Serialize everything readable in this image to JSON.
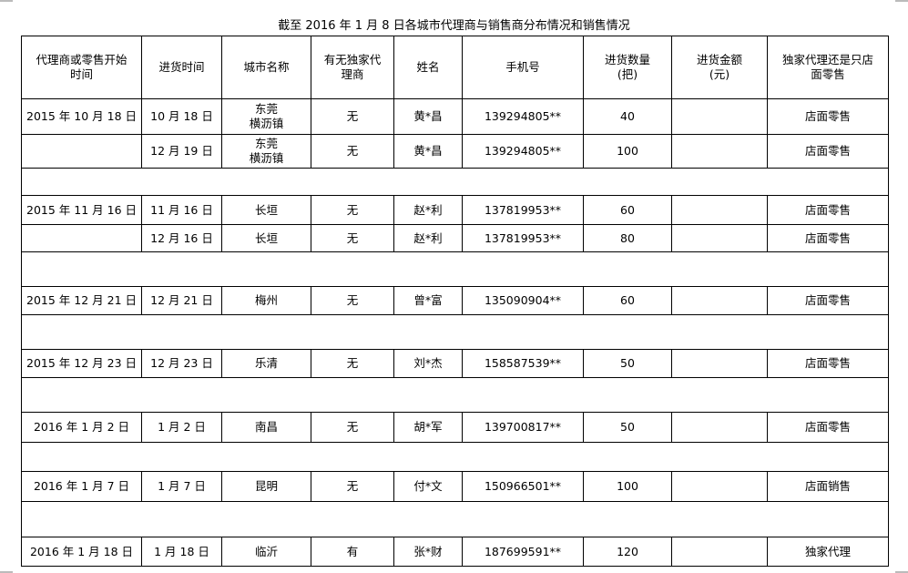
{
  "title": "截至 2016 年 1 月 8 日各城市代理商与销售商分布情况和销售情况",
  "headers": [
    "代理商或零售开始时间",
    "进货时间",
    "城市名称",
    "有无独家代理商",
    "姓名",
    "手机号",
    "进货数量(把)",
    "进货金额(元)",
    "独家代理还是只店面零售"
  ],
  "header_lines": [
    [
      "代理商或零售开始",
      "时间"
    ],
    [
      "进货时间"
    ],
    [
      "城市名称"
    ],
    [
      "有无独家代",
      "理商"
    ],
    [
      "姓名"
    ],
    [
      "手机号"
    ],
    [
      "进货数量",
      "(把)"
    ],
    [
      "进货金额",
      "(元)"
    ],
    [
      "独家代理还是只店",
      "面零售"
    ]
  ],
  "rows": [
    [
      "2015 年 10 月 18 日",
      "10 月 18 日",
      "东莞\n横沥镇",
      "无",
      "黄*昌",
      "139294805**",
      "40",
      "",
      "店面零售"
    ],
    [
      "",
      "12 月 19 日",
      "东莞\n横沥镇",
      "无",
      "黄*昌",
      "139294805**",
      "100",
      "",
      "店面零售"
    ],
    null,
    [
      "2015 年 11 月 16 日",
      "11 月 16 日",
      "长垣",
      "无",
      "赵*利",
      "137819953**",
      "60",
      "",
      "店面零售"
    ],
    [
      "",
      "12 月 16 日",
      "长垣",
      "无",
      "赵*利",
      "137819953**",
      "80",
      "",
      "店面零售"
    ],
    null,
    [
      "2015 年 12 月 21 日",
      "12 月 21 日",
      "梅州",
      "无",
      "曾*富",
      "135090904**",
      "60",
      "",
      "店面零售"
    ],
    null,
    [
      "2015 年 12 月 23 日",
      "12 月 23 日",
      "乐清",
      "无",
      "刘*杰",
      "158587539**",
      "50",
      "",
      "店面零售"
    ],
    null,
    [
      "2016 年 1 月 2 日",
      "1 月 2 日",
      "南昌",
      "无",
      "胡*军",
      "139700817**",
      "50",
      "",
      "店面零售"
    ],
    null,
    [
      "2016 年 1 月 7 日",
      "1 月 7 日",
      "昆明",
      "无",
      "付*文",
      "150966501**",
      "100",
      "",
      "店面销售"
    ],
    null,
    [
      "2016 年 1 月 18 日",
      "1 月 18 日",
      "临沂",
      "有",
      "张*财",
      "187699591**",
      "120",
      "",
      "独家代理"
    ]
  ]
}
